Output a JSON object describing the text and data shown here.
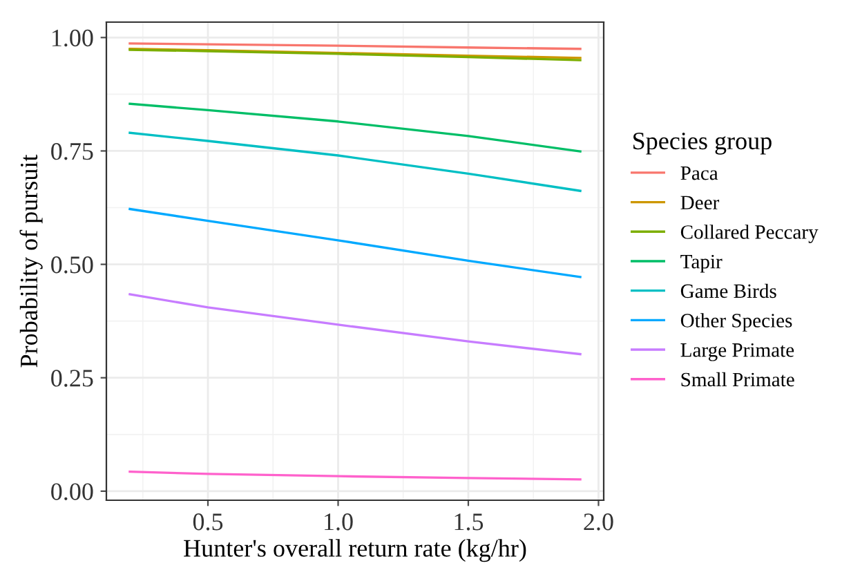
{
  "chart_data": {
    "type": "line",
    "xlabel": "Hunter's overall return rate (kg/hr)",
    "ylabel": "Probability of pursuit",
    "legend_title": "Species group",
    "x": [
      0.2,
      0.5,
      1.0,
      1.5,
      1.93
    ],
    "series": [
      {
        "name": "Paca",
        "color": "#f8766d",
        "values": [
          0.987,
          0.985,
          0.982,
          0.978,
          0.975
        ]
      },
      {
        "name": "Deer",
        "color": "#cd9600",
        "values": [
          0.975,
          0.972,
          0.966,
          0.96,
          0.955
        ]
      },
      {
        "name": "Collared Peccary",
        "color": "#7cae00",
        "values": [
          0.973,
          0.97,
          0.964,
          0.957,
          0.95
        ]
      },
      {
        "name": "Tapir",
        "color": "#00be67",
        "values": [
          0.854,
          0.84,
          0.815,
          0.783,
          0.749
        ]
      },
      {
        "name": "Game Birds",
        "color": "#00bfc4",
        "values": [
          0.79,
          0.772,
          0.74,
          0.7,
          0.662
        ]
      },
      {
        "name": "Other Species",
        "color": "#00a9ff",
        "values": [
          0.622,
          0.596,
          0.553,
          0.508,
          0.472
        ]
      },
      {
        "name": "Large Primate",
        "color": "#c77cff",
        "values": [
          0.434,
          0.405,
          0.367,
          0.33,
          0.302
        ]
      },
      {
        "name": "Small Primate",
        "color": "#ff61cc",
        "values": [
          0.043,
          0.038,
          0.033,
          0.029,
          0.026
        ]
      }
    ],
    "xlim": [
      0.11,
      2.02
    ],
    "ylim": [
      -0.02,
      1.034
    ],
    "xticks": [
      0.5,
      {
        "value": 1,
        "label": "1.0"
      },
      1.5,
      {
        "value": 2,
        "label": "2.0"
      }
    ],
    "yticks": [
      {
        "value": 0,
        "label": "0.00"
      },
      {
        "value": 0.25,
        "label": "0.25"
      },
      {
        "value": 0.5,
        "label": "0.50"
      },
      {
        "value": 0.75,
        "label": "0.75"
      },
      {
        "value": 1,
        "label": "1.00"
      }
    ],
    "grid": true,
    "legend": "right",
    "marker": "none",
    "line_style": "solid"
  }
}
